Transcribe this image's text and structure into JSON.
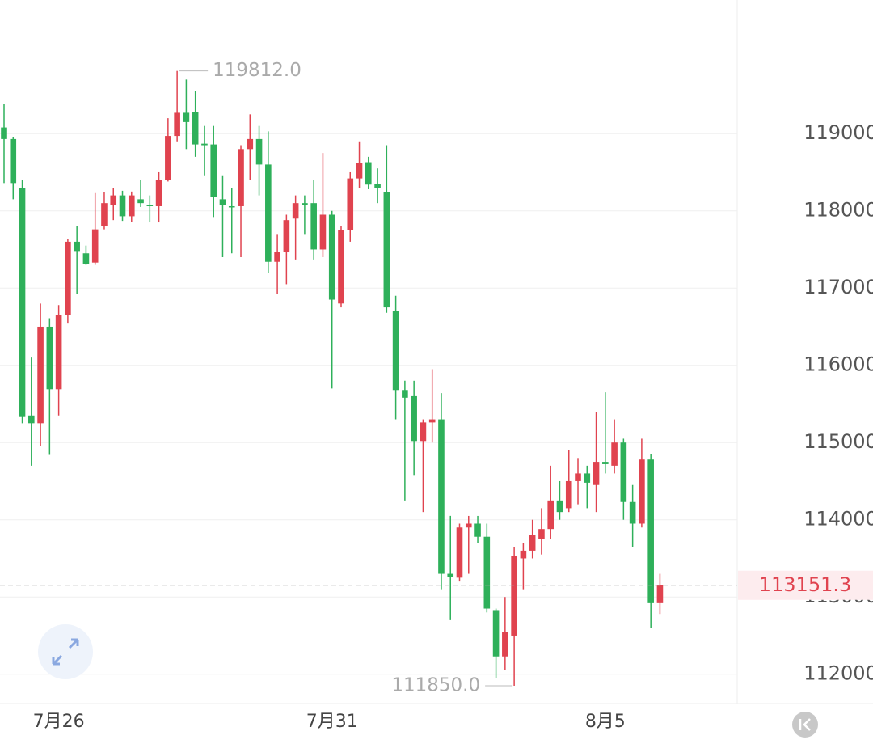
{
  "chart_data": {
    "type": "candlestick",
    "categories": [
      null,
      null,
      null,
      null,
      null,
      null,
      "7月26",
      null,
      null,
      null,
      null,
      null,
      null,
      null,
      null,
      null,
      null,
      null,
      null,
      null,
      null,
      null,
      null,
      null,
      null,
      null,
      null,
      null,
      null,
      null,
      null,
      null,
      null,
      null,
      null,
      null,
      "7月31",
      null,
      null,
      null,
      null,
      null,
      null,
      null,
      null,
      null,
      null,
      null,
      null,
      null,
      null,
      null,
      null,
      null,
      null,
      null,
      null,
      null,
      null,
      null,
      null,
      null,
      null,
      null,
      null,
      null,
      "8月5",
      null,
      null,
      null,
      null,
      null,
      null
    ],
    "series": [
      {
        "up_color": "#e0434f",
        "down_color": "#2eb05a",
        "open": [
          119080,
          118930,
          118300,
          115350,
          115250,
          116500,
          115690,
          116650,
          117600,
          117450,
          117330,
          117800,
          118080,
          118200,
          117930,
          118150,
          118080,
          118060,
          118400,
          118970,
          119270,
          119280,
          118870,
          118860,
          118150,
          118060,
          118060,
          118800,
          118930,
          118600,
          117340,
          117470,
          117900,
          118100,
          118100,
          117500,
          117950,
          116800,
          117750,
          118420,
          118630,
          118350,
          118240,
          116700,
          115680,
          115600,
          115020,
          115260,
          115300,
          113300,
          113250,
          113900,
          113950,
          113780,
          112830,
          112230,
          112500,
          113500,
          113600,
          113750,
          113880,
          114250,
          114150,
          114500,
          114600,
          114450,
          114750,
          114700,
          115000,
          114230,
          113950,
          114780,
          112920
        ],
        "high": [
          119380,
          118960,
          118400,
          116100,
          116800,
          116610,
          116780,
          117640,
          117800,
          117550,
          118230,
          118240,
          118300,
          118260,
          118250,
          118400,
          118200,
          118500,
          119200,
          119812,
          119700,
          119550,
          119100,
          119100,
          118450,
          118300,
          118850,
          119250,
          119100,
          119030,
          117700,
          117950,
          118200,
          118200,
          118400,
          118750,
          118000,
          117800,
          118500,
          118900,
          118700,
          118550,
          118850,
          116900,
          115800,
          115800,
          115300,
          115950,
          115640,
          114050,
          113950,
          114050,
          114050,
          113950,
          112850,
          113000,
          113650,
          113700,
          114000,
          114150,
          114700,
          114500,
          114900,
          114800,
          114700,
          115400,
          115650,
          115300,
          115050,
          114450,
          115050,
          114850,
          113300
        ],
        "low": [
          118360,
          118150,
          115250,
          114700,
          114960,
          114840,
          115350,
          116540,
          116920,
          117300,
          117300,
          117760,
          117880,
          117870,
          117860,
          118050,
          117850,
          117850,
          118380,
          118900,
          118800,
          118700,
          118450,
          117920,
          117400,
          117450,
          117400,
          118400,
          118200,
          117200,
          116920,
          117050,
          117370,
          117700,
          117370,
          117400,
          115700,
          116750,
          117600,
          118300,
          118280,
          118100,
          116680,
          115300,
          114250,
          114580,
          114100,
          115000,
          113100,
          112700,
          113200,
          113300,
          113700,
          112800,
          111950,
          112050,
          111850,
          113100,
          113500,
          113550,
          113750,
          114000,
          114100,
          114200,
          114150,
          114100,
          114600,
          114600,
          114000,
          113650,
          113900,
          112600,
          112780
        ],
        "close": [
          118930,
          118360,
          115330,
          115250,
          116500,
          115690,
          116650,
          117600,
          117480,
          117310,
          117760,
          118100,
          118200,
          117930,
          118200,
          118100,
          118060,
          118400,
          118970,
          119270,
          119150,
          118860,
          118850,
          118180,
          118080,
          118050,
          118800,
          118930,
          118600,
          117340,
          117470,
          117880,
          118100,
          118080,
          117500,
          117950,
          116850,
          117750,
          118420,
          118620,
          118340,
          118300,
          116750,
          115680,
          115580,
          115020,
          115260,
          115300,
          113300,
          113260,
          113900,
          113950,
          113780,
          112850,
          112230,
          112550,
          113530,
          113600,
          113800,
          113880,
          114250,
          114100,
          114500,
          114600,
          114480,
          114750,
          114720,
          115000,
          114230,
          113950,
          114780,
          112920,
          113151.3
        ]
      }
    ],
    "ylim": [
      111620,
      120730
    ],
    "yticks": [
      112000,
      113000,
      114000,
      115000,
      116000,
      117000,
      118000,
      119000
    ],
    "grid": true,
    "high_marker": {
      "value": 119812,
      "label": "119812.0"
    },
    "low_marker": {
      "value": 111850,
      "label": "111850.0"
    },
    "last_price": 113151.3,
    "last_price_color": "#e0434f"
  }
}
